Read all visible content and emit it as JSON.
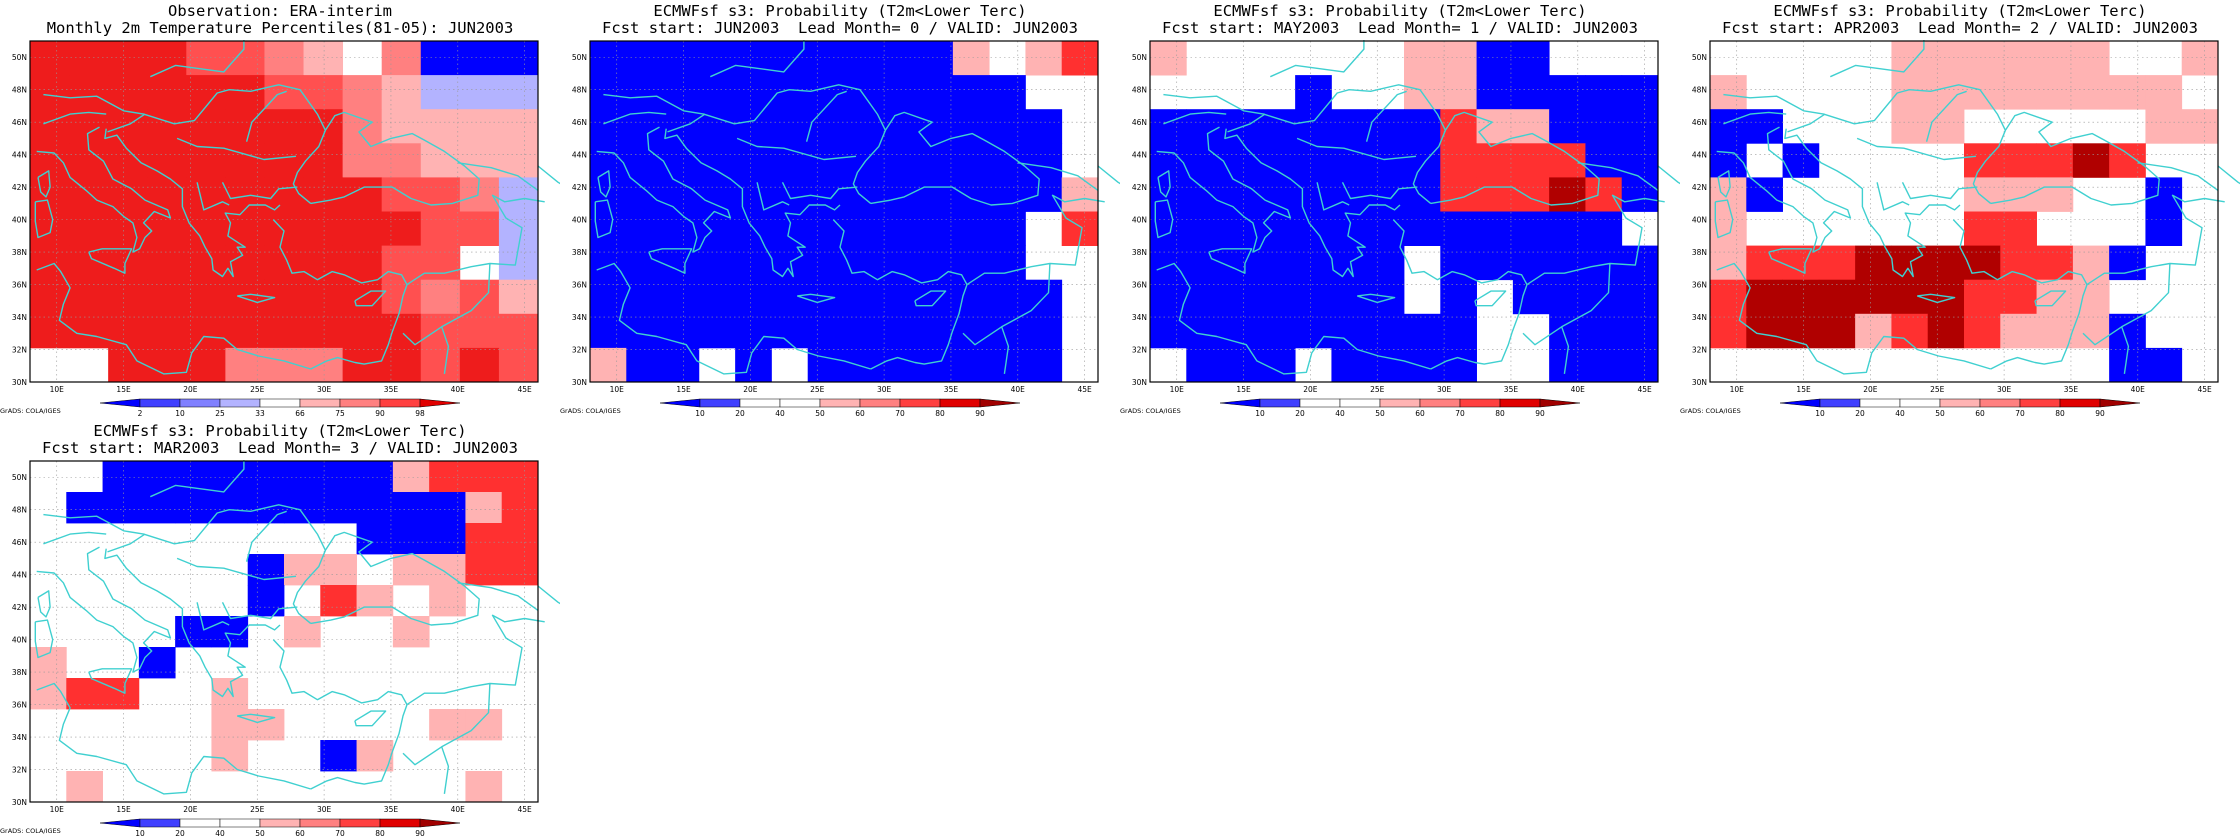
{
  "panels": [
    {
      "title_line1": "Observation: ERA-interim",
      "title_line2": "Monthly 2m Temperature Percentiles(81-05): JUN2003",
      "colorbar": {
        "labels": [
          "2",
          "10",
          "25",
          "33",
          "66",
          "75",
          "90",
          "98"
        ],
        "colors": [
          "#0000ff",
          "#4040ff",
          "#8080ff",
          "#b3b3ff",
          "#ffffff",
          "#ffb3b3",
          "#ff8080",
          "#ff4040",
          "#e00000"
        ]
      },
      "credit": "GrADS: COLA/IGES",
      "grid": [
        "RRRRMMLW.LBBB",
        "RRRRRRMMLWQQQ",
        "RRRRRRRRLWWWW",
        "RRRRRRRRLLWWW",
        "RRRRRRRRRMMLQ",
        "RRRRRRRRRRMMQ",
        "RRRRRRRRRMM.Q",
        "RRRRRRRRRMLMW",
        "RRRRRRRRRRMMM",
        "..RRRLLLRRMRM"
      ]
    },
    {
      "title_line1": "ECMWFsf s3: Probability (T2m<Lower Terc)",
      "title_line2": "Fcst start: JUN2003  Lead Month= 0 / VALID: JUN2003",
      "colorbar": {
        "labels": [
          "10",
          "20",
          "40",
          "50",
          "60",
          "70",
          "80",
          "90"
        ],
        "colors": [
          "#0000ff",
          "#4040ff",
          "#ffffff",
          "#ffffff",
          "#ffb3b3",
          "#ff8080",
          "#ff4040",
          "#e00000",
          "#a00000"
        ]
      },
      "credit": "GrADS: COLA/IGES",
      "grid": [
        "BBBBBBBBBBW.LR",
        "BBBBBBBBBBBB..",
        "BBBBBBBBBBBBB.",
        "BBBBBBBBBBBBB.",
        "BBBBBBBBBBBBBL",
        "BBBBBBBBBBBB.R",
        "BBBBBBBBBBBB..",
        "BBBBBBBBBBBBB.",
        "BBBBBBBBBBBBB.",
        "LBB.B.BBBBBBB."
      ]
    },
    {
      "title_line1": "ECMWFsf s3: Probability (T2m<Lower Terc)",
      "title_line2": "Fcst start: MAY2003  Lead Month= 1 / VALID: JUN2003",
      "colorbar": {
        "labels": [
          "10",
          "20",
          "40",
          "50",
          "60",
          "70",
          "80",
          "90"
        ],
        "colors": [
          "#0000ff",
          "#4040ff",
          "#ffffff",
          "#ffffff",
          "#ffb3b3",
          "#ff8080",
          "#ff4040",
          "#e00000",
          "#a00000"
        ]
      },
      "credit": "GrADS: COLA/IGES",
      "grid": [
        "L......LLBB...",
        "....B..LLBBBBB",
        "BBBBBBBBRLLBBB",
        "BBBBBBBBRRRRBB",
        "BBBBBBBBRRRDRB",
        "BBBBBBBBBBBBB.",
        "BBBBBBB.BBBBBB",
        "BBBBBBB.B.BBBB",
        "BBBBBBBBB..BBB",
        ".BBB.BBBB..BBB"
      ]
    },
    {
      "title_line1": "ECMWFsf s3: Probability (T2m<Lower Terc)",
      "title_line2": "Fcst start: APR2003  Lead Month= 2 / VALID: JUN2003",
      "colorbar": {
        "labels": [
          "10",
          "20",
          "40",
          "50",
          "60",
          "70",
          "80",
          "90"
        ],
        "colors": [
          "#0000ff",
          "#4040ff",
          "#ffffff",
          "#ffffff",
          "#ffb3b3",
          "#ff8080",
          "#ff4040",
          "#e00000",
          "#a00000"
        ]
      },
      "credit": "GrADS: COLA/IGES",
      "grid": [
        ".....LLLLLL..L",
        "L....LLLLLLLL.",
        "BB...LL.....LL",
        "B.B....RRRDR..",
        "LB.....LLL..B.",
        "L......RR...B.",
        "LRRRDDDDRRLB..",
        "RDDDDDDRRLL...",
        "RDDDLRDRLLLB..",
        "...........BB."
      ]
    },
    {
      "title_line1": "ECMWFsf s3: Probability (T2m<Lower Terc)",
      "title_line2": "Fcst start: MAR2003  Lead Month= 3 / VALID: JUN2003",
      "colorbar": {
        "labels": [
          "10",
          "20",
          "40",
          "50",
          "60",
          "70",
          "80",
          "90"
        ],
        "colors": [
          "#0000ff",
          "#4040ff",
          "#ffffff",
          "#ffffff",
          "#ffb3b3",
          "#ff8080",
          "#ff4040",
          "#e00000",
          "#a00000"
        ]
      },
      "credit": "GrADS: COLA/IGES",
      "grid": [
        "..BBBBBBBBLRRR",
        ".BBBBBBBBBBBLR",
        ".........BBBRR",
        "......BLL.LLRR",
        "......B.RL.L..",
        "....BB.L..L...",
        "L..B..........",
        "LRR..L........",
        ".....LL....LL.",
        ".....L..BL....",
        ".L..........L."
      ]
    }
  ],
  "map_axes": {
    "lon_labels": [
      "10E",
      "15E",
      "20E",
      "25E",
      "30E",
      "35E",
      "40E",
      "45E"
    ],
    "lat_labels": [
      "50N",
      "48N",
      "46N",
      "44N",
      "42N",
      "40N",
      "38N",
      "36N",
      "34N",
      "32N",
      "30N"
    ],
    "coastline_color": "#40d0d0",
    "grid_color": "#999999"
  }
}
